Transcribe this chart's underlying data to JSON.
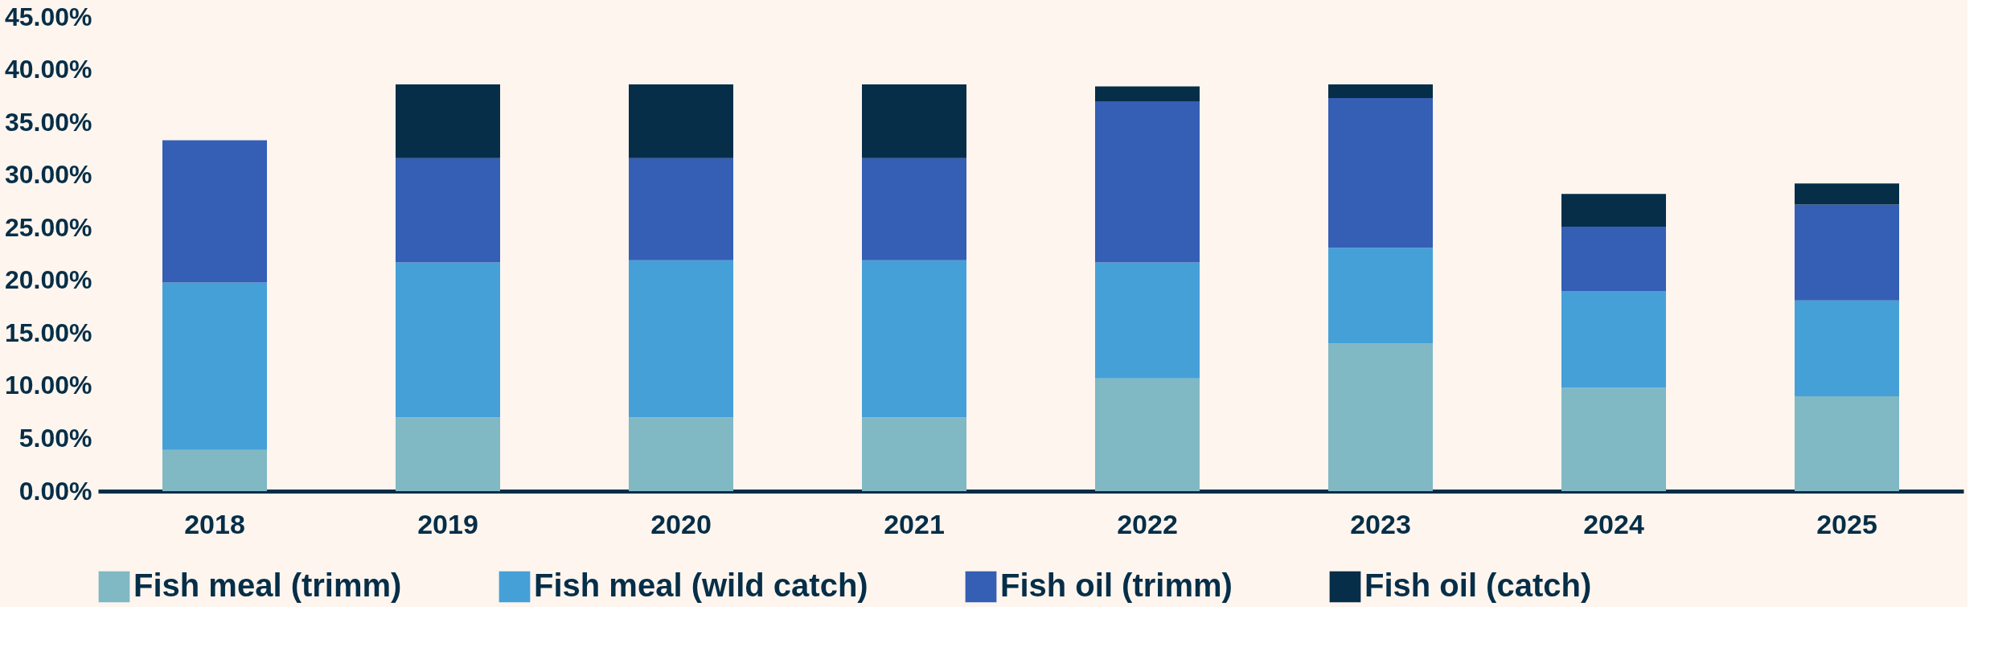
{
  "chart_data": {
    "type": "bar",
    "stacked": true,
    "categories": [
      "2018",
      "2019",
      "2020",
      "2021",
      "2022",
      "2023",
      "2024",
      "2025"
    ],
    "series": [
      {
        "name": "Fish meal (trimm)",
        "color": "#80b8c4",
        "values": [
          3.9,
          7.0,
          7.0,
          7.0,
          10.7,
          14.0,
          9.8,
          9.0
        ]
      },
      {
        "name": "Fish meal (wild catch)",
        "color": "#46a0d8",
        "values": [
          15.9,
          14.7,
          14.9,
          14.9,
          11.0,
          9.1,
          9.2,
          9.1
        ]
      },
      {
        "name": "Fish oil (trimm)",
        "color": "#355eb5",
        "values": [
          13.5,
          9.9,
          9.7,
          9.7,
          15.3,
          14.2,
          6.1,
          9.1
        ]
      },
      {
        "name": "Fish oil (catch)",
        "color": "#062e48",
        "values": [
          0,
          7.0,
          7.0,
          7.0,
          1.4,
          1.3,
          3.1,
          2.0
        ]
      }
    ],
    "ylim": [
      0,
      45
    ],
    "yticks": [
      {
        "value": 0,
        "label": "0.00%"
      },
      {
        "value": 5,
        "label": "5.00%"
      },
      {
        "value": 10,
        "label": "10.00%"
      },
      {
        "value": 15,
        "label": "15.00%"
      },
      {
        "value": 20,
        "label": "20.00%"
      },
      {
        "value": 25,
        "label": "25.00%"
      },
      {
        "value": 30,
        "label": "30.00%"
      },
      {
        "value": 35,
        "label": "35.00%"
      },
      {
        "value": 40,
        "label": "40.00%"
      },
      {
        "value": 45,
        "label": "45.00%"
      }
    ],
    "grid": false,
    "legend": "bottom"
  }
}
